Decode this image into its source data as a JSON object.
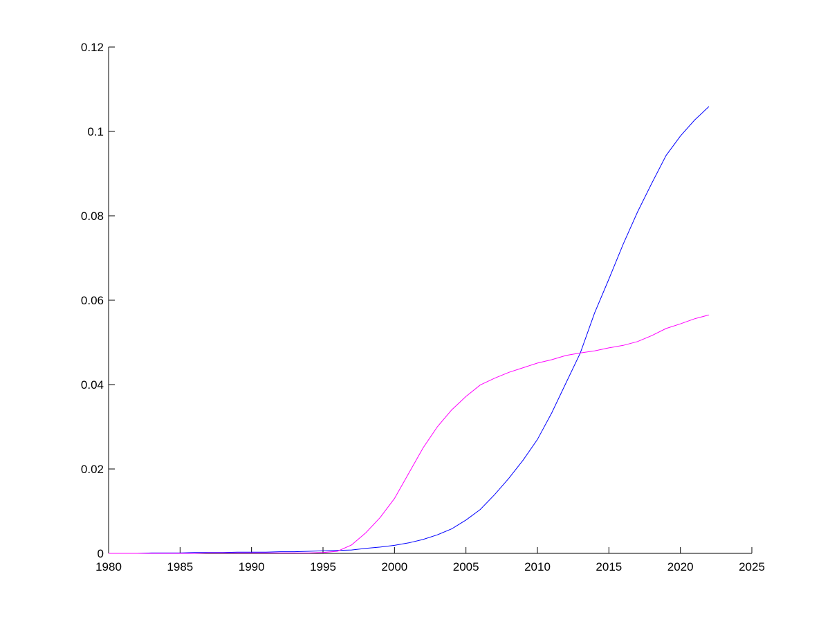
{
  "chart_data": {
    "type": "line",
    "title": "",
    "xlabel": "",
    "ylabel": "",
    "xlim": [
      1980,
      2025
    ],
    "ylim": [
      0,
      0.12
    ],
    "grid": false,
    "legend": "none",
    "x_ticks": [
      1980,
      1985,
      1990,
      1995,
      2000,
      2005,
      2010,
      2015,
      2020,
      2025
    ],
    "x_tick_labels": [
      "1980",
      "1985",
      "1990",
      "1995",
      "2000",
      "2005",
      "2010",
      "2015",
      "2020",
      "2025"
    ],
    "y_ticks": [
      0,
      0.02,
      0.04,
      0.06,
      0.08,
      0.1,
      0.12
    ],
    "y_tick_labels": [
      "0",
      "0.02",
      "0.04",
      "0.06",
      "0.08",
      "0.1",
      "0.12"
    ],
    "x": [
      1980,
      1981,
      1982,
      1983,
      1984,
      1985,
      1986,
      1987,
      1988,
      1989,
      1990,
      1991,
      1992,
      1993,
      1994,
      1995,
      1996,
      1997,
      1998,
      1999,
      2000,
      2001,
      2002,
      2003,
      2004,
      2005,
      2006,
      2007,
      2008,
      2009,
      2010,
      2011,
      2012,
      2013,
      2014,
      2015,
      2016,
      2017,
      2018,
      2019,
      2020,
      2021,
      2022
    ],
    "series": [
      {
        "color": "#0000ff",
        "values": [
          0.0,
          0.0,
          0.0,
          0.0001,
          0.0001,
          0.0001,
          0.0002,
          0.0002,
          0.0002,
          0.0003,
          0.0003,
          0.0003,
          0.0004,
          0.0004,
          0.0005,
          0.0006,
          0.0007,
          0.0008,
          0.0012,
          0.0015,
          0.0019,
          0.0025,
          0.0033,
          0.0044,
          0.0058,
          0.0079,
          0.0104,
          0.0139,
          0.0178,
          0.0221,
          0.027,
          0.0333,
          0.0404,
          0.0475,
          0.057,
          0.065,
          0.0733,
          0.0809,
          0.0877,
          0.0943,
          0.0989,
          0.1027,
          0.1059
        ]
      },
      {
        "color": "#ff00ff",
        "values": [
          0.0,
          0.0,
          0.0,
          0.0,
          0.0,
          0.0,
          0.0,
          0.0001,
          0.0001,
          0.0001,
          0.0001,
          0.0001,
          0.0001,
          0.0001,
          0.0001,
          0.0002,
          0.0005,
          0.002,
          0.0049,
          0.0085,
          0.013,
          0.019,
          0.025,
          0.03,
          0.034,
          0.0372,
          0.0399,
          0.0415,
          0.0429,
          0.044,
          0.0451,
          0.0459,
          0.0469,
          0.0475,
          0.048,
          0.0487,
          0.0493,
          0.0502,
          0.0516,
          0.0533,
          0.0544,
          0.0556,
          0.0565
        ]
      }
    ]
  }
}
